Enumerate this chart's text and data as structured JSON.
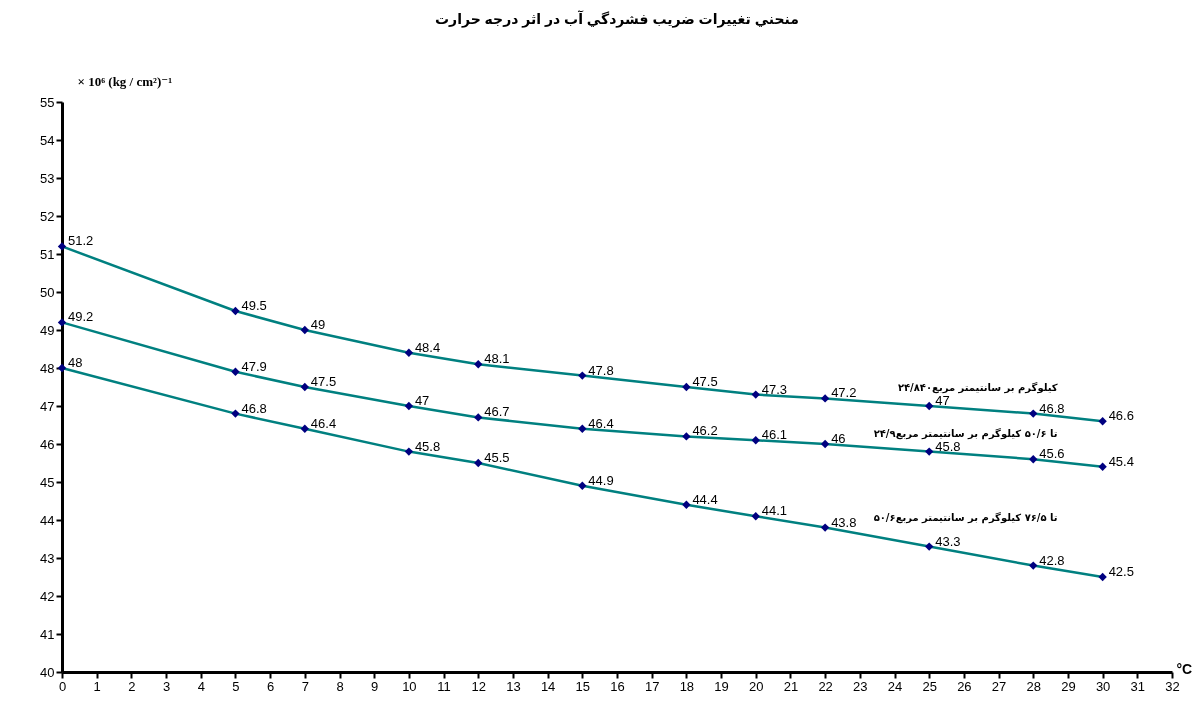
{
  "chart_data": {
    "type": "line",
    "title": "منحني تغييرات ضريب فشردگي آب در اثر درجه حرارت",
    "ylabel": "× 10⁶ (kg / cm²)⁻¹",
    "xlabel": "°C",
    "x": [
      0,
      5,
      7,
      10,
      12,
      15,
      18,
      20,
      22,
      25,
      28,
      30
    ],
    "series": [
      {
        "name": "۲۴/۸۴۰کیلوگرم بر سانتیمتر مربع",
        "color": "#008080",
        "values": [
          51.2,
          49.5,
          49,
          48.4,
          48.1,
          47.8,
          47.5,
          47.3,
          47.2,
          47,
          46.8,
          46.6
        ]
      },
      {
        "name": "۲۴/۹تا ۵۰/۶ کیلوگرم بر سانتیمتر مربع",
        "color": "#008080",
        "values": [
          49.2,
          47.9,
          47.5,
          47,
          46.7,
          46.4,
          46.2,
          46.1,
          46,
          45.8,
          45.6,
          45.4
        ]
      },
      {
        "name": "۵۰/۶تا ۷۶/۵ کیلوگرم بر سانتیمتر مربع",
        "color": "#008080",
        "values": [
          48,
          46.8,
          46.4,
          45.8,
          45.5,
          44.9,
          44.4,
          44.1,
          43.8,
          43.3,
          42.8,
          42.5
        ]
      }
    ],
    "xlim": [
      0,
      32
    ],
    "xticks": [
      0,
      1,
      2,
      3,
      4,
      5,
      6,
      7,
      8,
      9,
      10,
      11,
      12,
      13,
      14,
      15,
      16,
      17,
      18,
      19,
      20,
      21,
      22,
      23,
      24,
      25,
      26,
      27,
      28,
      29,
      30,
      31,
      32
    ],
    "ylim": [
      40,
      55
    ],
    "yticks": [
      40,
      41,
      42,
      43,
      44,
      45,
      46,
      47,
      48,
      49,
      50,
      51,
      52,
      53,
      54,
      55
    ],
    "marker": "diamond",
    "line_style": "solid",
    "data_labels": true
  }
}
